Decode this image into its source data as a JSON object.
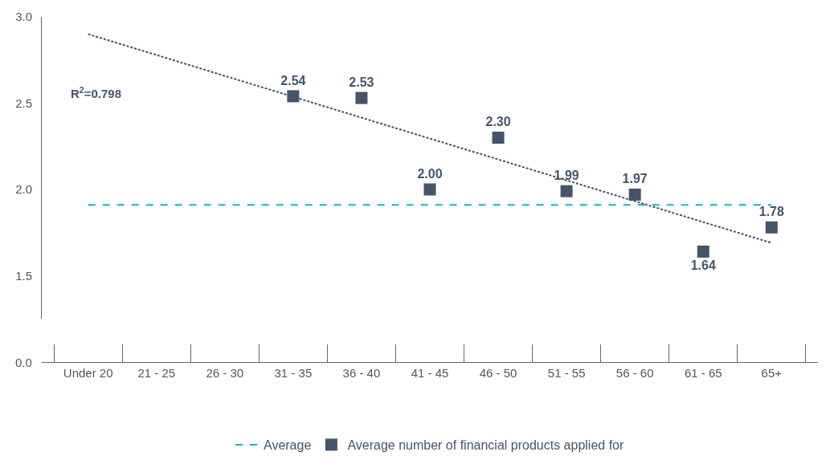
{
  "chart_data": {
    "type": "scatter",
    "categories": [
      "Under 20",
      "21 - 25",
      "26 - 30",
      "31 - 35",
      "36 - 40",
      "41 - 45",
      "46 - 50",
      "51 - 55",
      "56 - 60",
      "61 - 65",
      "65+"
    ],
    "series": [
      {
        "name": "Average",
        "type": "line",
        "color": "#1ab3bd",
        "line_style": "dashed",
        "marker": "none",
        "values": [
          1.91,
          1.91,
          1.91,
          1.91,
          1.91,
          1.91,
          1.91,
          1.91,
          1.91,
          1.91,
          1.91
        ]
      },
      {
        "name": "Average number of financial products applied for",
        "color": "#44546a",
        "marker": "square",
        "values": [
          null,
          null,
          null,
          2.54,
          2.53,
          2.0,
          2.3,
          1.99,
          1.97,
          1.64,
          1.78
        ],
        "value_labels": [
          null,
          null,
          null,
          "2.54",
          "2.53",
          "2.00",
          "2.30",
          "1.99",
          "1.97",
          "1.64",
          "1.78"
        ]
      },
      {
        "type": "line",
        "color": "#44546a",
        "line_style": "dotted",
        "marker": "none",
        "x": [
          "Under 20",
          "65+"
        ],
        "values": [
          2.9,
          1.69
        ]
      }
    ],
    "ylim": [
      1.25,
      3.0
    ],
    "yticks": [
      {
        "value": 1.5,
        "label": "1.5"
      },
      {
        "value": 2.0,
        "label": "2.0"
      },
      {
        "value": 2.5,
        "label": "2.5"
      },
      {
        "value": 3.0,
        "label": "3.0"
      }
    ],
    "annotations": [
      "R$^{2}$=0.798",
      "0.0"
    ],
    "grid": false,
    "legend": "bottom"
  }
}
